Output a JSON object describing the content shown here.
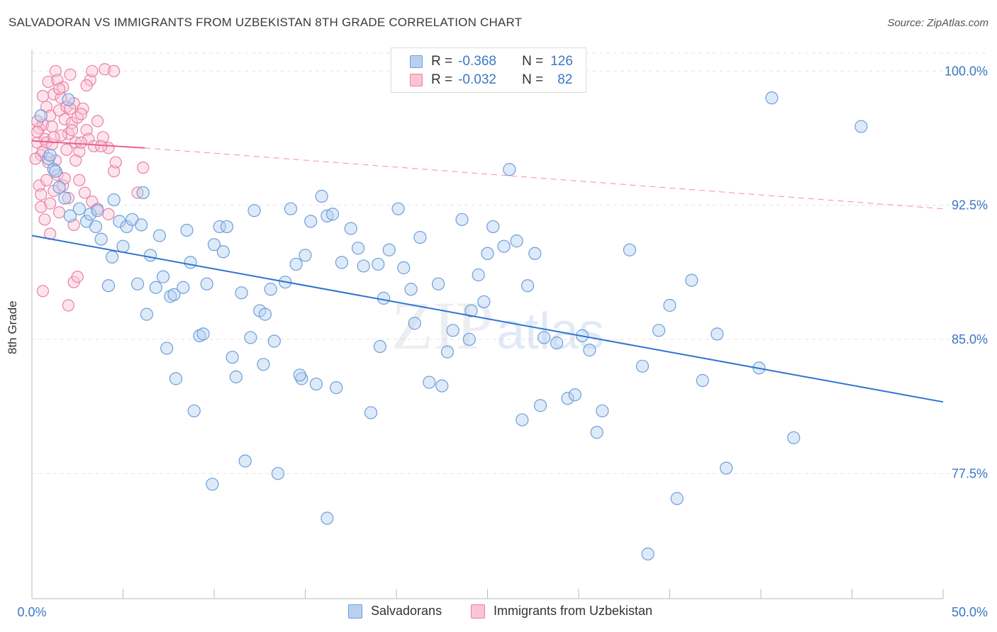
{
  "header": {
    "title": "SALVADORAN VS IMMIGRANTS FROM UZBEKISTAN 8TH GRADE CORRELATION CHART",
    "source": "Source: ZipAtlas.com"
  },
  "legend_top": {
    "row1": {
      "r_label": "R =",
      "r_value": "-0.368",
      "n_label": "N =",
      "n_value": "126"
    },
    "row2": {
      "r_label": "R =",
      "r_value": "-0.032",
      "n_label": "N =",
      "n_value": "82"
    }
  },
  "legend_bottom": {
    "item1": "Salvadorans",
    "item2": "Immigrants from Uzbekistan"
  },
  "colors": {
    "blue_fill": "#b8d0f0",
    "blue_stroke": "#6b9fdc",
    "blue_line": "#2f74d0",
    "pink_fill": "#f8c4d6",
    "pink_stroke": "#ec7fa3",
    "pink_line": "#e8608e",
    "axis_text": "#3b78c3",
    "grid": "#e3e3e3"
  },
  "chart_data": {
    "type": "scatter",
    "title": "SALVADORAN VS IMMIGRANTS FROM UZBEKISTAN 8TH GRADE CORRELATION CHART",
    "xlabel": "",
    "ylabel": "8th Grade",
    "xlim": [
      0,
      50
    ],
    "ylim": [
      70.5,
      101.2
    ],
    "x_tick_labels": [
      "0.0%",
      "50.0%"
    ],
    "y_ticks": [
      77.5,
      85.0,
      92.5,
      100.0
    ],
    "y_tick_labels": [
      "77.5%",
      "85.0%",
      "92.5%",
      "100.0%"
    ],
    "grid": "horizontal dashed",
    "watermark": "ZIPatlas",
    "series": [
      {
        "name": "Salvadorans",
        "color": "#6b9fdc",
        "trend": {
          "x": [
            0,
            50
          ],
          "y": [
            90.8,
            81.5
          ],
          "style": "solid"
        },
        "points": [
          [
            0.5,
            97.5
          ],
          [
            0.9,
            95.1
          ],
          [
            1.2,
            94.5
          ],
          [
            1.5,
            93.5
          ],
          [
            1.8,
            92.9
          ],
          [
            2.1,
            91.9
          ],
          [
            2.6,
            92.3
          ],
          [
            3.0,
            91.6
          ],
          [
            3.2,
            92.0
          ],
          [
            3.5,
            91.3
          ],
          [
            3.8,
            90.6
          ],
          [
            4.2,
            88.0
          ],
          [
            4.4,
            89.6
          ],
          [
            4.5,
            92.8
          ],
          [
            4.8,
            91.6
          ],
          [
            5.0,
            90.2
          ],
          [
            5.2,
            91.3
          ],
          [
            5.5,
            91.7
          ],
          [
            5.8,
            88.1
          ],
          [
            6.1,
            93.2
          ],
          [
            6.3,
            86.4
          ],
          [
            6.5,
            89.7
          ],
          [
            6.8,
            87.9
          ],
          [
            7.0,
            90.8
          ],
          [
            7.2,
            88.5
          ],
          [
            7.4,
            84.5
          ],
          [
            7.6,
            87.4
          ],
          [
            7.8,
            87.5
          ],
          [
            7.9,
            82.8
          ],
          [
            8.3,
            87.9
          ],
          [
            8.5,
            91.1
          ],
          [
            8.7,
            89.3
          ],
          [
            8.9,
            81.0
          ],
          [
            9.2,
            85.2
          ],
          [
            9.4,
            85.3
          ],
          [
            9.6,
            88.1
          ],
          [
            10.0,
            90.3
          ],
          [
            10.3,
            91.3
          ],
          [
            10.5,
            89.9
          ],
          [
            10.7,
            91.3
          ],
          [
            11.0,
            84.0
          ],
          [
            11.2,
            82.9
          ],
          [
            11.5,
            87.6
          ],
          [
            11.7,
            78.2
          ],
          [
            12.0,
            85.1
          ],
          [
            12.2,
            92.2
          ],
          [
            12.5,
            86.6
          ],
          [
            12.8,
            86.4
          ],
          [
            13.1,
            87.8
          ],
          [
            13.3,
            84.9
          ],
          [
            13.5,
            77.5
          ],
          [
            13.9,
            88.2
          ],
          [
            14.2,
            92.3
          ],
          [
            14.5,
            89.2
          ],
          [
            14.8,
            82.8
          ],
          [
            15.0,
            89.7
          ],
          [
            15.3,
            91.6
          ],
          [
            15.6,
            82.5
          ],
          [
            15.9,
            93.0
          ],
          [
            16.2,
            91.9
          ],
          [
            16.5,
            92.0
          ],
          [
            16.7,
            82.3
          ],
          [
            17.0,
            89.3
          ],
          [
            17.5,
            91.2
          ],
          [
            17.9,
            90.1
          ],
          [
            18.2,
            89.1
          ],
          [
            18.6,
            80.9
          ],
          [
            19.0,
            89.2
          ],
          [
            19.3,
            87.3
          ],
          [
            19.6,
            90.0
          ],
          [
            20.1,
            92.3
          ],
          [
            20.4,
            89.0
          ],
          [
            20.8,
            87.8
          ],
          [
            21.3,
            90.7
          ],
          [
            21.8,
            82.6
          ],
          [
            22.3,
            88.1
          ],
          [
            22.8,
            84.3
          ],
          [
            23.1,
            85.5
          ],
          [
            23.6,
            91.7
          ],
          [
            24.0,
            85.0
          ],
          [
            24.5,
            88.6
          ],
          [
            24.8,
            87.1
          ],
          [
            25.0,
            89.8
          ],
          [
            25.3,
            91.3
          ],
          [
            25.9,
            90.2
          ],
          [
            26.2,
            94.5
          ],
          [
            26.6,
            90.5
          ],
          [
            27.2,
            88.0
          ],
          [
            27.6,
            89.8
          ],
          [
            28.1,
            85.1
          ],
          [
            28.8,
            84.8
          ],
          [
            29.4,
            81.7
          ],
          [
            29.8,
            81.9
          ],
          [
            30.2,
            85.2
          ],
          [
            30.6,
            84.4
          ],
          [
            31.0,
            79.8
          ],
          [
            31.3,
            81.0
          ],
          [
            32.8,
            90.0
          ],
          [
            33.5,
            83.5
          ],
          [
            34.4,
            85.5
          ],
          [
            35.4,
            76.1
          ],
          [
            36.2,
            88.3
          ],
          [
            37.6,
            85.3
          ],
          [
            39.9,
            83.4
          ],
          [
            40.6,
            98.5
          ],
          [
            41.8,
            79.5
          ],
          [
            45.5,
            96.9
          ],
          [
            16.2,
            75.0
          ],
          [
            33.8,
            73.0
          ],
          [
            38.1,
            77.8
          ],
          [
            9.9,
            76.9
          ],
          [
            2.0,
            98.4
          ],
          [
            1.0,
            95.3
          ],
          [
            1.3,
            94.4
          ],
          [
            3.6,
            92.2
          ],
          [
            6.0,
            91.4
          ],
          [
            14.7,
            83.0
          ],
          [
            22.5,
            82.4
          ],
          [
            27.9,
            81.3
          ],
          [
            36.8,
            82.7
          ],
          [
            19.1,
            84.6
          ],
          [
            12.7,
            83.6
          ],
          [
            24.1,
            86.6
          ],
          [
            26.9,
            80.5
          ],
          [
            35.0,
            86.9
          ],
          [
            21.0,
            85.9
          ]
        ]
      },
      {
        "name": "Immigrants from Uzbekistan",
        "color": "#ec7fa3",
        "trend": {
          "x": [
            0,
            6.2
          ],
          "y": [
            96.1,
            95.7
          ],
          "style": "solid",
          "extended_dashed_to": [
            50,
            92.3
          ]
        },
        "points": [
          [
            0.3,
            96.0
          ],
          [
            0.4,
            96.8
          ],
          [
            0.5,
            95.3
          ],
          [
            0.6,
            97.0
          ],
          [
            0.7,
            96.2
          ],
          [
            0.8,
            98.0
          ],
          [
            0.9,
            99.4
          ],
          [
            1.0,
            97.5
          ],
          [
            1.1,
            96.9
          ],
          [
            1.2,
            98.7
          ],
          [
            1.3,
            100.0
          ],
          [
            1.4,
            99.5
          ],
          [
            1.5,
            97.8
          ],
          [
            1.6,
            98.5
          ],
          [
            1.7,
            99.1
          ],
          [
            1.8,
            97.3
          ],
          [
            1.9,
            98.0
          ],
          [
            2.0,
            96.5
          ],
          [
            2.1,
            99.8
          ],
          [
            2.2,
            97.1
          ],
          [
            2.3,
            98.2
          ],
          [
            2.4,
            96.0
          ],
          [
            2.5,
            97.4
          ],
          [
            2.6,
            95.5
          ],
          [
            2.8,
            97.9
          ],
          [
            3.0,
            96.7
          ],
          [
            3.2,
            99.5
          ],
          [
            3.3,
            100.0
          ],
          [
            3.6,
            97.2
          ],
          [
            3.9,
            96.3
          ],
          [
            4.0,
            100.1
          ],
          [
            4.2,
            95.7
          ],
          [
            4.5,
            94.4
          ],
          [
            0.4,
            93.6
          ],
          [
            0.5,
            92.4
          ],
          [
            0.7,
            91.7
          ],
          [
            0.8,
            93.9
          ],
          [
            1.0,
            92.6
          ],
          [
            1.2,
            93.3
          ],
          [
            1.5,
            92.1
          ],
          [
            1.7,
            93.6
          ],
          [
            2.0,
            92.9
          ],
          [
            2.3,
            91.4
          ],
          [
            2.6,
            93.9
          ],
          [
            2.9,
            93.2
          ],
          [
            3.3,
            92.7
          ],
          [
            3.6,
            92.3
          ],
          [
            4.2,
            92.0
          ],
          [
            4.6,
            94.9
          ],
          [
            6.1,
            94.6
          ],
          [
            0.6,
            87.7
          ],
          [
            2.0,
            86.9
          ],
          [
            2.3,
            88.2
          ],
          [
            2.5,
            88.5
          ],
          [
            1.0,
            90.9
          ],
          [
            0.2,
            95.1
          ],
          [
            0.3,
            96.6
          ],
          [
            0.6,
            95.5
          ],
          [
            0.8,
            96.0
          ],
          [
            1.1,
            95.9
          ],
          [
            1.3,
            95.0
          ],
          [
            1.6,
            96.4
          ],
          [
            1.9,
            95.6
          ],
          [
            2.2,
            96.7
          ],
          [
            2.7,
            97.6
          ],
          [
            3.1,
            96.2
          ],
          [
            3.4,
            95.8
          ],
          [
            1.4,
            94.2
          ],
          [
            0.9,
            94.9
          ],
          [
            0.5,
            93.1
          ],
          [
            0.3,
            97.2
          ],
          [
            1.8,
            94.0
          ],
          [
            2.4,
            95.0
          ],
          [
            2.7,
            96.0
          ],
          [
            3.8,
            95.8
          ],
          [
            5.8,
            93.2
          ],
          [
            0.6,
            98.6
          ],
          [
            1.2,
            96.3
          ],
          [
            4.5,
            100.0
          ],
          [
            1.5,
            99.0
          ],
          [
            2.1,
            97.9
          ],
          [
            3.0,
            99.2
          ]
        ]
      }
    ]
  }
}
